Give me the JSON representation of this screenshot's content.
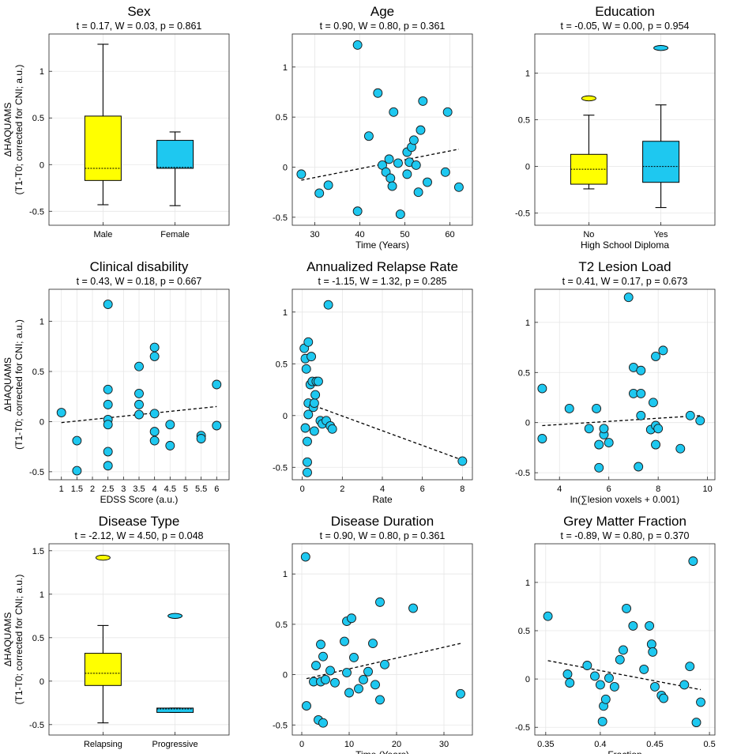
{
  "colors": {
    "yellow": "#ffff00",
    "cyan": "#1ec8f0"
  },
  "chart_data": [
    {
      "type": "box",
      "title": "Sex",
      "subtitle": "t = 0.17, W = 0.03, p = 0.861",
      "ylabel1": "ΔHAQUAMS",
      "ylabel2": "(T1-T0; corrected for CNI; a.u.)",
      "xlabel": "",
      "categories": [
        "Male",
        "Female"
      ],
      "ylim": [
        -0.65,
        1.4
      ],
      "yticks": [
        -0.5,
        0,
        0.5,
        1
      ],
      "ytick_labels": [
        "-0.5",
        "0",
        "0.5",
        "1"
      ],
      "boxes": [
        {
          "color": "yellow",
          "min": -0.43,
          "q1": -0.17,
          "median": -0.04,
          "q3": 0.52,
          "max": 1.29,
          "outliers": []
        },
        {
          "color": "cyan",
          "min": -0.44,
          "q1": -0.04,
          "median": -0.03,
          "q3": 0.26,
          "max": 0.35,
          "outliers": []
        }
      ]
    },
    {
      "type": "scatter",
      "title": "Age",
      "subtitle": "t = 0.90, W = 0.80, p = 0.361",
      "ylabel1": "",
      "ylabel2": "",
      "xlabel": "Time (Years)",
      "xlim": [
        25,
        65
      ],
      "xticks": [
        30,
        40,
        50,
        60
      ],
      "xtick_labels": [
        "30",
        "40",
        "50",
        "60"
      ],
      "ylim": [
        -0.58,
        1.33
      ],
      "yticks": [
        -0.5,
        0,
        0.5,
        1
      ],
      "ytick_labels": [
        "-0.5",
        "0",
        "0.5",
        "1"
      ],
      "points": [
        [
          27,
          -0.07
        ],
        [
          31,
          -0.26
        ],
        [
          33,
          -0.18
        ],
        [
          39.5,
          1.22
        ],
        [
          39.5,
          -0.44
        ],
        [
          42,
          0.31
        ],
        [
          44,
          0.74
        ],
        [
          45,
          0.02
        ],
        [
          45.8,
          -0.05
        ],
        [
          46.5,
          0.08
        ],
        [
          46.8,
          -0.11
        ],
        [
          47.2,
          -0.19
        ],
        [
          47.5,
          0.55
        ],
        [
          48.5,
          0.04
        ],
        [
          49,
          -0.47
        ],
        [
          50.5,
          -0.07
        ],
        [
          50.5,
          0.15
        ],
        [
          51,
          0.05
        ],
        [
          51.5,
          0.2
        ],
        [
          52,
          0.27
        ],
        [
          52.5,
          0.02
        ],
        [
          53,
          -0.25
        ],
        [
          53.5,
          0.37
        ],
        [
          54,
          0.66
        ],
        [
          55,
          -0.15
        ],
        [
          59,
          -0.05
        ],
        [
          59.5,
          0.55
        ],
        [
          62,
          -0.2
        ]
      ],
      "fit": [
        [
          27,
          -0.13
        ],
        [
          62,
          0.18
        ]
      ]
    },
    {
      "type": "box",
      "title": "Education",
      "subtitle": "t = -0.05, W = 0.00, p = 0.954",
      "ylabel1": "",
      "ylabel2": "",
      "xlabel": "High School Diploma",
      "categories": [
        "No",
        "Yes"
      ],
      "ylim": [
        -0.63,
        1.42
      ],
      "yticks": [
        -0.5,
        0,
        0.5,
        1
      ],
      "ytick_labels": [
        "-0.5",
        "0",
        "0.5",
        "1"
      ],
      "boxes": [
        {
          "color": "yellow",
          "min": -0.24,
          "q1": -0.19,
          "median": -0.03,
          "q3": 0.13,
          "max": 0.55,
          "outliers": [
            0.73
          ]
        },
        {
          "color": "cyan",
          "min": -0.44,
          "q1": -0.17,
          "median": 0.0,
          "q3": 0.27,
          "max": 0.66,
          "outliers": [
            1.27
          ]
        }
      ]
    },
    {
      "type": "scatter",
      "title": "Clinical disability",
      "subtitle": "t = 0.43, W = 0.18, p = 0.667",
      "ylabel1": "ΔHAQUAMS",
      "ylabel2": "(T1-T0; corrected for CNI; a.u.)",
      "xlabel": "EDSS Score (a.u.)",
      "xlim": [
        0.6,
        6.4
      ],
      "xticks": [
        1,
        1.5,
        2,
        2.5,
        3,
        3.5,
        4,
        4.5,
        5,
        5.5,
        6
      ],
      "xtick_labels": [
        "1",
        "1.5",
        "2",
        "2.5",
        "3",
        "3.5",
        "4",
        "4.5",
        "5",
        "5.5",
        "6"
      ],
      "ylim": [
        -0.58,
        1.32
      ],
      "yticks": [
        -0.5,
        0,
        0.5,
        1
      ],
      "ytick_labels": [
        "-0.5",
        "0",
        "0.5",
        "1"
      ],
      "points": [
        [
          1,
          0.09
        ],
        [
          1.5,
          -0.19
        ],
        [
          1.5,
          -0.49
        ],
        [
          2.5,
          1.17
        ],
        [
          2.5,
          0.32
        ],
        [
          2.5,
          0.17
        ],
        [
          2.5,
          0.02
        ],
        [
          2.5,
          -0.03
        ],
        [
          2.5,
          -0.3
        ],
        [
          2.5,
          -0.44
        ],
        [
          3.5,
          0.55
        ],
        [
          3.5,
          0.28
        ],
        [
          3.5,
          0.17
        ],
        [
          3.5,
          0.07
        ],
        [
          4,
          0.74
        ],
        [
          4,
          0.65
        ],
        [
          4,
          0.08
        ],
        [
          4,
          -0.1
        ],
        [
          4,
          -0.19
        ],
        [
          4.5,
          -0.03
        ],
        [
          4.5,
          -0.24
        ],
        [
          5.5,
          -0.14
        ],
        [
          5.5,
          -0.17
        ],
        [
          6,
          0.37
        ],
        [
          6,
          -0.04
        ]
      ],
      "fit": [
        [
          1,
          -0.01
        ],
        [
          6,
          0.15
        ]
      ]
    },
    {
      "type": "scatter",
      "title": "Annualized Relapse Rate",
      "subtitle": "t = -1.15, W = 1.32, p = 0.285",
      "ylabel1": "",
      "ylabel2": "",
      "xlabel": "Rate",
      "xlim": [
        -0.5,
        8.5
      ],
      "xticks": [
        0,
        2,
        4,
        6,
        8
      ],
      "xtick_labels": [
        "0",
        "2",
        "4",
        "6",
        "8"
      ],
      "ylim": [
        -0.62,
        1.22
      ],
      "yticks": [
        -0.5,
        0,
        0.5,
        1
      ],
      "ytick_labels": [
        "-0.5",
        "0",
        "0.5",
        "1"
      ],
      "points": [
        [
          0.1,
          0.65
        ],
        [
          0.15,
          0.55
        ],
        [
          0.15,
          -0.12
        ],
        [
          0.2,
          0.45
        ],
        [
          0.3,
          0.71
        ],
        [
          0.3,
          0.01
        ],
        [
          0.25,
          -0.25
        ],
        [
          0.25,
          -0.45
        ],
        [
          0.25,
          -0.55
        ],
        [
          0.3,
          0.12
        ],
        [
          0.4,
          0.3
        ],
        [
          0.45,
          0.57
        ],
        [
          0.5,
          0.33
        ],
        [
          0.55,
          0.08
        ],
        [
          0.6,
          0.12
        ],
        [
          0.6,
          -0.15
        ],
        [
          0.65,
          0.2
        ],
        [
          0.7,
          0.33
        ],
        [
          0.8,
          0.33
        ],
        [
          0.9,
          -0.05
        ],
        [
          1.0,
          -0.08
        ],
        [
          1.2,
          -0.05
        ],
        [
          1.3,
          1.07
        ],
        [
          1.4,
          -0.1
        ],
        [
          1.5,
          -0.13
        ],
        [
          8,
          -0.44
        ]
      ],
      "fit": [
        [
          0.1,
          0.13
        ],
        [
          8,
          -0.43
        ]
      ]
    },
    {
      "type": "scatter",
      "title": "T2 Lesion Load",
      "subtitle": "t = 0.41, W = 0.17, p = 0.673",
      "ylabel1": "",
      "ylabel2": "",
      "xlabel": "ln(∑lesion voxels + 0.001)",
      "xlim": [
        3,
        10.3
      ],
      "xticks": [
        4,
        6,
        8,
        10
      ],
      "xtick_labels": [
        "4",
        "6",
        "8",
        "10"
      ],
      "ylim": [
        -0.57,
        1.33
      ],
      "yticks": [
        -0.5,
        0,
        0.5,
        1
      ],
      "ytick_labels": [
        "-0.5",
        "0",
        "0.5",
        "1"
      ],
      "points": [
        [
          3.3,
          0.34
        ],
        [
          3.3,
          -0.16
        ],
        [
          4.4,
          0.14
        ],
        [
          5.2,
          -0.06
        ],
        [
          5.5,
          0.14
        ],
        [
          5.6,
          -0.45
        ],
        [
          5.6,
          -0.22
        ],
        [
          5.8,
          -0.12
        ],
        [
          5.8,
          -0.06
        ],
        [
          6.0,
          -0.2
        ],
        [
          6.8,
          1.25
        ],
        [
          7.0,
          0.55
        ],
        [
          7.0,
          0.29
        ],
        [
          7.3,
          0.52
        ],
        [
          7.3,
          0.29
        ],
        [
          7.3,
          0.07
        ],
        [
          7.2,
          -0.44
        ],
        [
          7.7,
          -0.07
        ],
        [
          7.8,
          0.2
        ],
        [
          7.9,
          -0.03
        ],
        [
          7.9,
          -0.22
        ],
        [
          7.9,
          0.66
        ],
        [
          8.0,
          -0.06
        ],
        [
          8.2,
          0.72
        ],
        [
          8.9,
          -0.26
        ],
        [
          9.3,
          0.07
        ],
        [
          9.7,
          0.02
        ]
      ],
      "fit": [
        [
          3.3,
          -0.03
        ],
        [
          9.7,
          0.07
        ]
      ]
    },
    {
      "type": "box",
      "title": "Disease Type",
      "subtitle": "t = -2.12, W = 4.50, p = 0.048",
      "ylabel1": "ΔHAQUAMS",
      "ylabel2": "(T1-T0; corrected for CNI; a.u.)",
      "xlabel": "",
      "categories": [
        "Relapsing",
        "Progressive"
      ],
      "ylim": [
        -0.62,
        1.58
      ],
      "yticks": [
        -0.5,
        0,
        0.5,
        1,
        1.5
      ],
      "ytick_labels": [
        "-0.5",
        "0",
        "0.5",
        "1",
        "1.5"
      ],
      "boxes": [
        {
          "color": "yellow",
          "min": -0.48,
          "q1": -0.05,
          "median": 0.09,
          "q3": 0.32,
          "max": 0.64,
          "outliers": [
            1.42
          ]
        },
        {
          "color": "cyan",
          "min": -0.36,
          "q1": -0.36,
          "median": -0.32,
          "q3": -0.31,
          "max": -0.31,
          "outliers": [
            0.75
          ]
        }
      ]
    },
    {
      "type": "scatter",
      "title": "Disease Duration",
      "subtitle": "t = 0.90, W = 0.80, p = 0.361",
      "ylabel1": "",
      "ylabel2": "",
      "xlabel": "Time (Years)",
      "xlim": [
        -2,
        36
      ],
      "xticks": [
        0,
        10,
        20,
        30
      ],
      "xtick_labels": [
        "0",
        "10",
        "20",
        "30"
      ],
      "ylim": [
        -0.6,
        1.3
      ],
      "yticks": [
        -0.5,
        0,
        0.5,
        1
      ],
      "ytick_labels": [
        "-0.5",
        "0",
        "0.5",
        "1"
      ],
      "points": [
        [
          0.8,
          1.17
        ],
        [
          1,
          -0.31
        ],
        [
          2.5,
          -0.07
        ],
        [
          3,
          0.09
        ],
        [
          3.5,
          -0.45
        ],
        [
          4,
          0.3
        ],
        [
          4,
          -0.07
        ],
        [
          4.5,
          -0.48
        ],
        [
          4.5,
          0.18
        ],
        [
          5,
          -0.05
        ],
        [
          6,
          0.04
        ],
        [
          7,
          -0.08
        ],
        [
          9,
          0.33
        ],
        [
          9.5,
          0.02
        ],
        [
          9.5,
          0.53
        ],
        [
          10,
          -0.18
        ],
        [
          10.5,
          0.56
        ],
        [
          11,
          0.17
        ],
        [
          12,
          -0.14
        ],
        [
          13,
          -0.05
        ],
        [
          14,
          0.03
        ],
        [
          15,
          0.31
        ],
        [
          15.5,
          -0.1
        ],
        [
          16.5,
          0.72
        ],
        [
          16.5,
          -0.25
        ],
        [
          17.5,
          0.1
        ],
        [
          23.5,
          0.66
        ],
        [
          33.5,
          -0.19
        ]
      ],
      "fit": [
        [
          1,
          -0.04
        ],
        [
          33.5,
          0.31
        ]
      ]
    },
    {
      "type": "scatter",
      "title": "Grey Matter Fraction",
      "subtitle": "t = -0.89, W = 0.80, p = 0.370",
      "ylabel1": "",
      "ylabel2": "",
      "xlabel": "Fraction",
      "xlim": [
        0.34,
        0.505
      ],
      "xticks": [
        0.35,
        0.4,
        0.45,
        0.5
      ],
      "xtick_labels": [
        "0.35",
        "0.4",
        "0.45",
        "0.5"
      ],
      "ylim": [
        -0.58,
        1.4
      ],
      "yticks": [
        -0.5,
        0,
        0.5,
        1
      ],
      "ytick_labels": [
        "-0.5",
        "0",
        "0.5",
        "1"
      ],
      "points": [
        [
          0.352,
          0.65
        ],
        [
          0.37,
          0.05
        ],
        [
          0.372,
          -0.04
        ],
        [
          0.388,
          0.14
        ],
        [
          0.395,
          0.03
        ],
        [
          0.4,
          -0.06
        ],
        [
          0.402,
          -0.44
        ],
        [
          0.403,
          -0.28
        ],
        [
          0.405,
          -0.21
        ],
        [
          0.408,
          0.01
        ],
        [
          0.413,
          -0.08
        ],
        [
          0.418,
          0.2
        ],
        [
          0.421,
          0.3
        ],
        [
          0.424,
          0.73
        ],
        [
          0.43,
          0.55
        ],
        [
          0.44,
          0.1
        ],
        [
          0.445,
          0.55
        ],
        [
          0.447,
          0.36
        ],
        [
          0.448,
          0.28
        ],
        [
          0.45,
          -0.08
        ],
        [
          0.456,
          -0.17
        ],
        [
          0.458,
          -0.2
        ],
        [
          0.477,
          -0.06
        ],
        [
          0.482,
          0.13
        ],
        [
          0.485,
          1.22
        ],
        [
          0.488,
          -0.45
        ],
        [
          0.492,
          -0.24
        ]
      ],
      "fit": [
        [
          0.352,
          0.19
        ],
        [
          0.492,
          -0.11
        ]
      ]
    }
  ]
}
